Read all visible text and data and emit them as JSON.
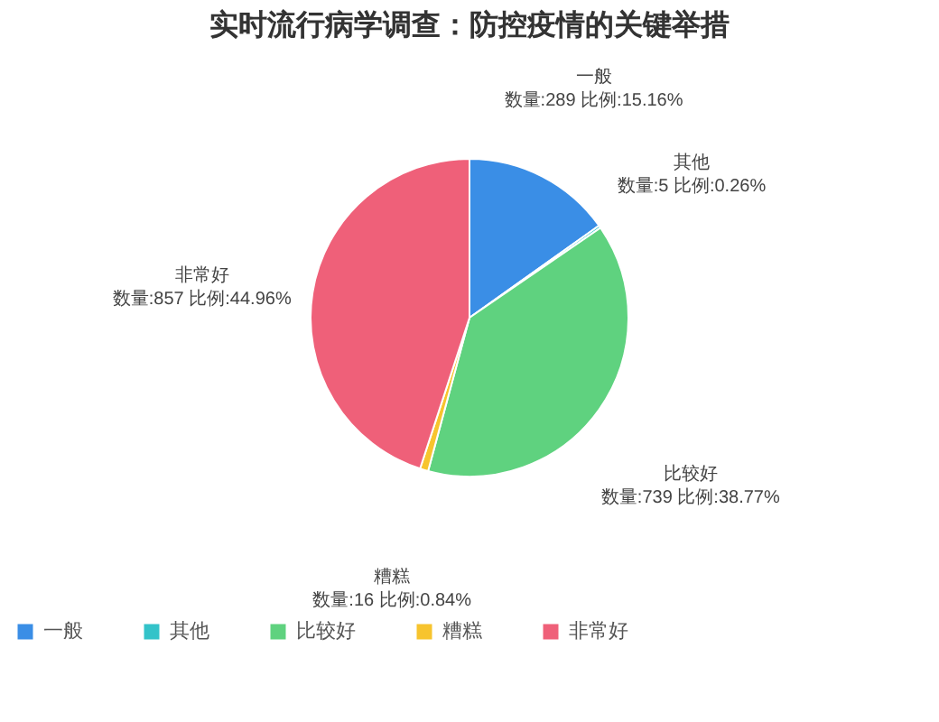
{
  "chart_data": {
    "type": "pie",
    "title": "实时流行病学调查：防控疫情的关键举措",
    "categories": [
      "一般",
      "其他",
      "比较好",
      "糟糕",
      "非常好"
    ],
    "values": [
      289,
      5,
      739,
      16,
      857
    ],
    "colors": [
      "#3a8ee6",
      "#33c3c9",
      "#5fd27f",
      "#f7c42e",
      "#ef6079"
    ],
    "value_labels": [
      "数量:289 比例:15.16%",
      "数量:5 比例:0.26%",
      "数量:739 比例:38.77%",
      "数量:16 比例:0.84%",
      "数量:857 比例:44.96%"
    ],
    "legend": "bottom"
  }
}
